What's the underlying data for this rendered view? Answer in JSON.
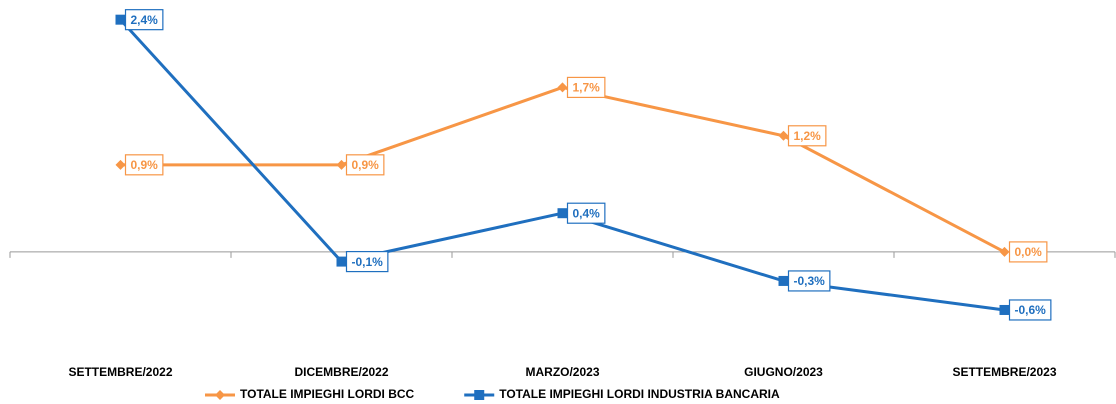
{
  "chart_data": {
    "type": "line",
    "categories": [
      "SETTEMBRE/2022",
      "DICEMBRE/2022",
      "MARZO/2023",
      "GIUGNO/2023",
      "SETTEMBRE/2023"
    ],
    "series": [
      {
        "name": "TOTALE IMPIEGHI LORDI BCC",
        "color": "#f79646",
        "marker": "diamond",
        "values": [
          0.9,
          0.9,
          1.7,
          1.2,
          0.0
        ],
        "value_labels": [
          "0,9%",
          "0,9%",
          "1,7%",
          "1,2%",
          "0,0%"
        ]
      },
      {
        "name": "TOTALE IMPIEGHI LORDI INDUSTRIA BANCARIA",
        "color": "#1f6fbf",
        "marker": "square",
        "values": [
          2.4,
          -0.1,
          0.4,
          -0.3,
          -0.6
        ],
        "value_labels": [
          "2,4%",
          "-0,1%",
          "0,4%",
          "-0,3%",
          "-0,6%"
        ]
      }
    ],
    "ylim": [
      -0.9,
      2.5
    ],
    "legend": "bottom"
  }
}
